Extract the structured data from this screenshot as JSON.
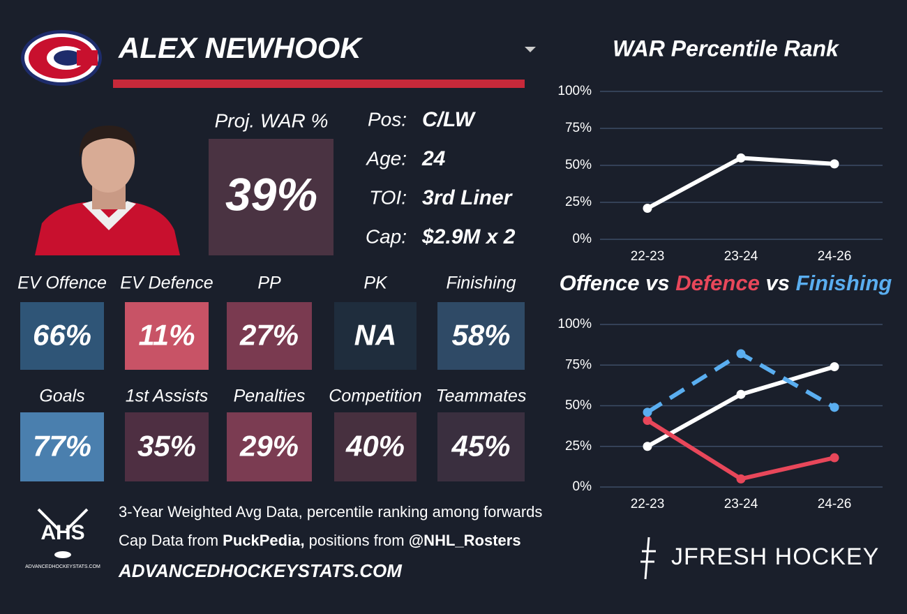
{
  "header": {
    "name": "ALEX NEWHOOK"
  },
  "projection": {
    "label": "Proj. WAR %",
    "value": "39%",
    "color": "#4a3342"
  },
  "info": [
    {
      "label": "Pos:",
      "value": "C/LW"
    },
    {
      "label": "Age:",
      "value": "24"
    },
    {
      "label": "TOI:",
      "value": "3rd Liner"
    },
    {
      "label": "Cap:",
      "value": "$2.9M x 2"
    }
  ],
  "tiles": [
    {
      "label": "EV Offence",
      "value": "66%",
      "color": "#2f5577"
    },
    {
      "label": "EV Defence",
      "value": "11%",
      "color": "#c85366"
    },
    {
      "label": "PP",
      "value": "27%",
      "color": "#7a3a50"
    },
    {
      "label": "PK",
      "value": "NA",
      "color": "#1f2d3d"
    },
    {
      "label": "Finishing",
      "value": "58%",
      "color": "#2f4a66"
    },
    {
      "label": "Goals",
      "value": "77%",
      "color": "#4a7fae"
    },
    {
      "label": "1st Assists",
      "value": "35%",
      "color": "#4e2f42"
    },
    {
      "label": "Penalties",
      "value": "29%",
      "color": "#7b3c52"
    },
    {
      "label": "Competition",
      "value": "40%",
      "color": "#47303f"
    },
    {
      "label": "Teammates",
      "value": "45%",
      "color": "#3a2f3f"
    }
  ],
  "footer": {
    "note": "3-Year Weighted Avg Data, percentile ranking among forwards",
    "cap_parts": [
      "Cap Data from ",
      "PuckPedia,",
      " positions from ",
      "@NHL_Rosters"
    ],
    "website": "ADVANCEDHOCKEYSTATS.COM",
    "logo_text": "AHS",
    "logo_subtext": "ADVANCEDHOCKEYSTATS.COM",
    "brand": "JFRESH HOCKEY"
  },
  "chart_data": [
    {
      "type": "line",
      "title": "WAR Percentile Rank",
      "categories": [
        "22-23",
        "23-24",
        "24-26"
      ],
      "values": [
        21,
        55,
        51
      ],
      "color": "#ffffff",
      "ylim": [
        0,
        100
      ],
      "yticks": [
        {
          "value": 0,
          "label": "0%"
        },
        {
          "value": 25,
          "label": "25%"
        },
        {
          "value": 50,
          "label": "50%"
        },
        {
          "value": 75,
          "label": "75%"
        },
        {
          "value": 100,
          "label": "100%"
        }
      ],
      "grid": true
    },
    {
      "type": "line",
      "title_separator": "vs",
      "categories": [
        "22-23",
        "23-24",
        "24-26"
      ],
      "series": [
        {
          "name": "Offence",
          "color": "#ffffff",
          "values": [
            25,
            57,
            74
          ]
        },
        {
          "name": "Defence",
          "color": "#e8475a",
          "values": [
            41,
            5,
            18
          ]
        },
        {
          "name": "Finishing",
          "color": "#5aaef0",
          "values": [
            46,
            82,
            49
          ],
          "dashed": true
        }
      ],
      "ylim": [
        0,
        100
      ],
      "yticks": [
        {
          "value": 0,
          "label": "0%"
        },
        {
          "value": 25,
          "label": "25%"
        },
        {
          "value": 50,
          "label": "50%"
        },
        {
          "value": 75,
          "label": "75%"
        },
        {
          "value": 100,
          "label": "100%"
        }
      ],
      "grid": true
    }
  ]
}
